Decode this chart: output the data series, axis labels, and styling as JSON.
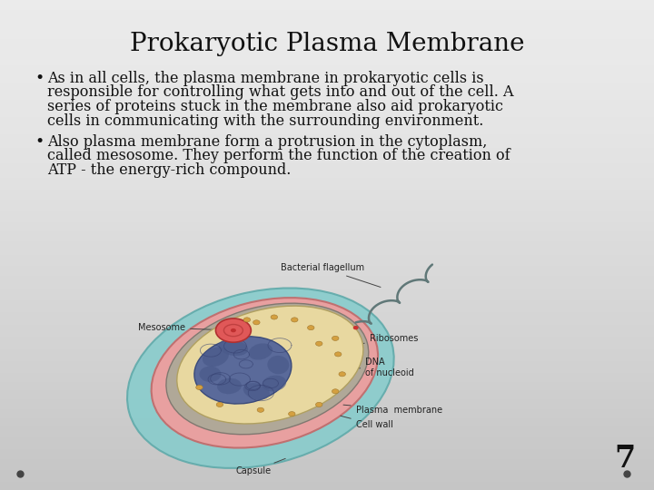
{
  "title": "Prokaryotic Plasma Membrane",
  "title_fontsize": 20,
  "title_font": "serif",
  "bullet1_line1": "As in all cells, the plasma membrane in prokaryotic cells is",
  "bullet1_line2": "responsible for controlling what gets into and out of the cell. A",
  "bullet1_line3": "series of proteins stuck in the membrane also aid prokaryotic",
  "bullet1_line4": "cells in communicating with the surrounding environment.",
  "bullet2_line1": "Also plasma membrane form a protrusion in the cytoplasm,",
  "bullet2_line2": "called mesosome. They perform the function of the creation of",
  "bullet2_line3": "ATP - the energy-rich compound.",
  "bullet_fontsize": 11.5,
  "bullet_font": "serif",
  "background_top": "#e8e8e8",
  "background_bottom": "#c8c8c8",
  "text_color": "#111111",
  "slide_number": "7",
  "dot_color": "#444444",
  "capsule_color": "#88cccc",
  "cell_wall_color": "#e8a0a0",
  "plasma_color": "#b0a898",
  "cyto_color": "#e8d8a0",
  "dna_color": "#5a6a9a",
  "meso_color": "#e05050",
  "ribo_color": "#d4a040",
  "flagellum_color": "#607878",
  "label_fontsize": 7,
  "annotation_color": "#222222"
}
